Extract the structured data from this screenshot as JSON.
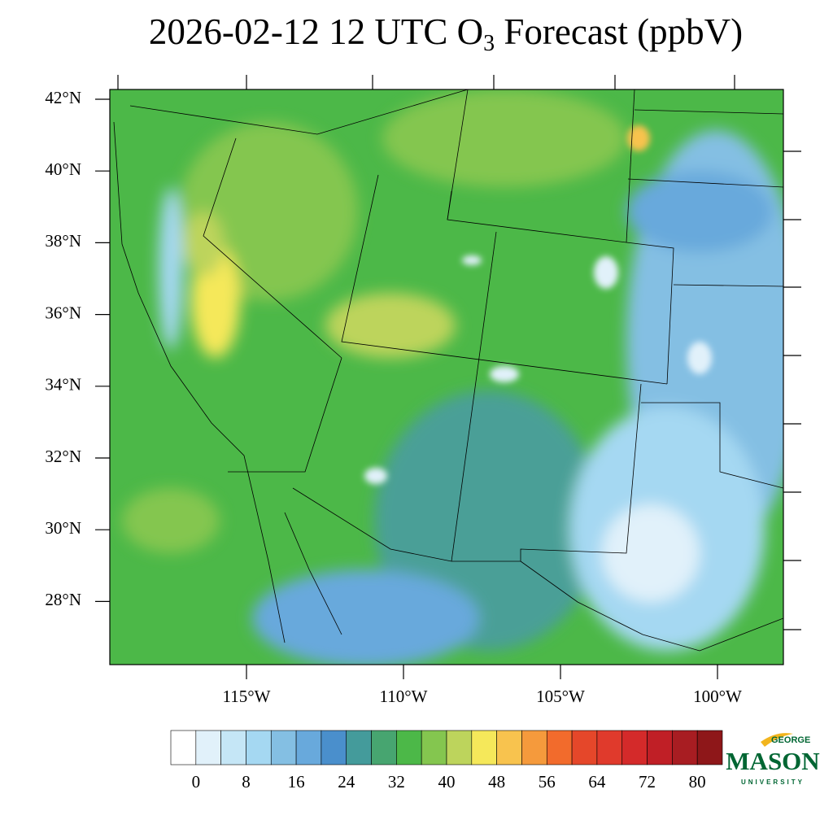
{
  "title": {
    "prefix": "2026-02-12 12 UTC O",
    "subscript": "3",
    "suffix": " Forecast (ppbV)"
  },
  "map": {
    "lat_ticks": [
      {
        "value": 42,
        "label": "42°N"
      },
      {
        "value": 40,
        "label": "40°N"
      },
      {
        "value": 38,
        "label": "38°N"
      },
      {
        "value": 36,
        "label": "36°N"
      },
      {
        "value": 34,
        "label": "34°N"
      },
      {
        "value": 32,
        "label": "32°N"
      },
      {
        "value": 30,
        "label": "30°N"
      },
      {
        "value": 28,
        "label": "28°N"
      }
    ],
    "lon_ticks": [
      {
        "value": -115,
        "label": "115°W"
      },
      {
        "value": -110,
        "label": "110°W"
      },
      {
        "value": -105,
        "label": "105°W"
      },
      {
        "value": -100,
        "label": "100°W"
      }
    ]
  },
  "colorbar": {
    "ticks": [
      0,
      8,
      16,
      24,
      32,
      40,
      48,
      56,
      64,
      72,
      80
    ],
    "colors": [
      "#ffffff",
      "#e1f1fa",
      "#c5e6f6",
      "#a5d8f2",
      "#84bfe3",
      "#68a9dc",
      "#4a8fcc",
      "#449b9b",
      "#47a570",
      "#4cb848",
      "#84c64f",
      "#bdd45c",
      "#f5e85a",
      "#f8c34e",
      "#f59a3c",
      "#f26b2c",
      "#e5472a",
      "#e03a2c",
      "#d42a2a",
      "#c01f26",
      "#a81d22",
      "#8e1719"
    ]
  },
  "logo": {
    "top": "GEORGE",
    "main": "MASON",
    "bottom": "UNIVERSITY"
  }
}
